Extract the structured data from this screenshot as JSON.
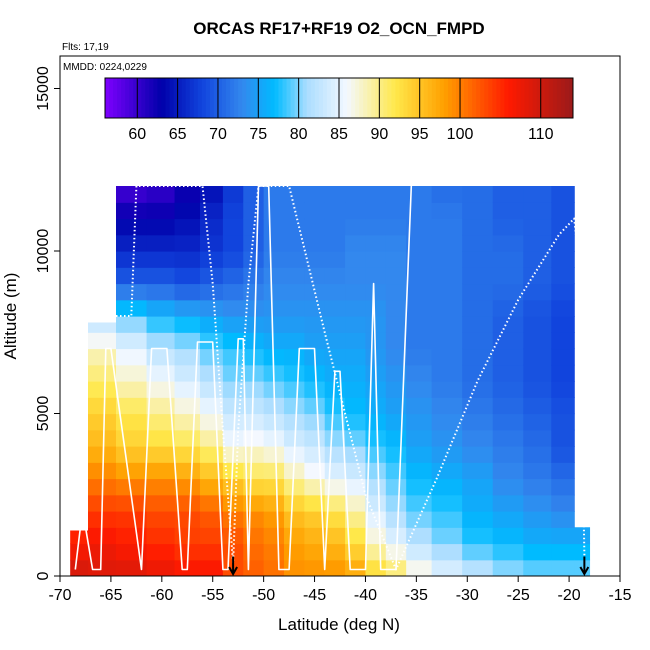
{
  "chart_data": {
    "type": "heatmap",
    "title": "ORCAS RF17+RF19 O2_OCN_FMPD",
    "annotations": [
      "Flts: 17,19",
      "MMDD: 0224,0229"
    ],
    "xlabel": "Latitude (deg N)",
    "ylabel": "Altitude (m)",
    "xlim": [
      -70,
      -15
    ],
    "ylim": [
      0,
      16000
    ],
    "x_ticks": [
      -70,
      -65,
      -60,
      -55,
      -50,
      -45,
      -40,
      -35,
      -30,
      -25,
      -20,
      -15
    ],
    "y_ticks": [
      0,
      5000,
      10000,
      15000
    ],
    "colorbar": {
      "range": [
        56,
        114
      ],
      "ticks": [
        60,
        65,
        70,
        75,
        80,
        85,
        90,
        95,
        100,
        110
      ],
      "colors": [
        "#7f00ff",
        "#0000aa",
        "#1144dd",
        "#3388ee",
        "#00bbff",
        "#aaddff",
        "#f4f8ff",
        "#ffe84a",
        "#ffa000",
        "#ff1a00",
        "#9b1a1a"
      ],
      "color_stops": [
        56,
        63,
        68,
        73,
        77,
        81,
        86,
        92,
        98,
        106,
        114
      ]
    },
    "field": {
      "lat": [
        -68.5,
        -66,
        -63,
        -60,
        -57.5,
        -55,
        -53,
        -51,
        -49,
        -47,
        -45,
        -43,
        -41,
        -39,
        -37,
        -35,
        -32,
        -29,
        -26,
        -23,
        -20.5,
        -18.5
      ],
      "alt": [
        0,
        500,
        1000,
        1500,
        2000,
        2500,
        3000,
        3500,
        4000,
        4500,
        5000,
        5500,
        6000,
        6500,
        7000,
        7500,
        8000,
        8500,
        9000,
        9500,
        10000,
        10500,
        11000,
        11500,
        12000
      ],
      "top_alt_by_lat": [
        1400,
        7800,
        12000,
        12000,
        12000,
        12000,
        12000,
        12000,
        12000,
        12000,
        12000,
        12000,
        12000,
        12000,
        12000,
        12000,
        12000,
        12000,
        12000,
        12000,
        12000,
        1500
      ],
      "knots": [
        {
          "alt": 0,
          "values": [
            110,
            109,
            109,
            108,
            107,
            107,
            103,
            102,
            101,
            99,
            99,
            99,
            98,
            94,
            92,
            88,
            85,
            83,
            81,
            80,
            80,
            80
          ]
        },
        {
          "alt": 1000,
          "values": [
            106,
            107,
            106,
            105,
            104,
            104,
            103,
            101,
            100,
            98,
            97,
            96,
            93,
            88,
            85,
            82,
            80,
            78,
            77,
            76,
            76,
            76
          ]
        },
        {
          "alt": 2000,
          "values": [
            104,
            104,
            104,
            103,
            103,
            102,
            100,
            99,
            98,
            95,
            94,
            92,
            89,
            84,
            81,
            79,
            78,
            76,
            75,
            74,
            73,
            73
          ]
        },
        {
          "alt": 3000,
          "values": [
            101,
            100,
            99,
            99,
            98,
            96,
            94,
            92,
            92,
            89,
            87,
            85,
            84,
            81,
            79,
            77,
            76,
            75,
            73,
            72,
            71,
            71
          ]
        },
        {
          "alt": 4000,
          "values": [
            98,
            96,
            94,
            93,
            92,
            90,
            86,
            87,
            86,
            84,
            83,
            81,
            80,
            78,
            77,
            75,
            74,
            73,
            72,
            71,
            69,
            69
          ]
        },
        {
          "alt": 5000,
          "values": [
            96,
            94,
            92,
            90,
            88,
            86,
            83,
            83,
            82,
            81,
            80,
            78,
            77,
            76,
            75,
            74,
            73,
            72,
            71,
            70,
            69,
            69
          ]
        },
        {
          "alt": 6000,
          "values": [
            94,
            91,
            88,
            86,
            84,
            82,
            80,
            80,
            79,
            78,
            77,
            76,
            76,
            75,
            74,
            73,
            72,
            71,
            70,
            69,
            68,
            68
          ]
        },
        {
          "alt": 7000,
          "values": [
            92,
            88,
            85,
            82,
            81,
            79,
            78,
            77,
            76,
            76,
            75,
            75,
            75,
            74,
            73,
            72,
            72,
            71,
            70,
            69,
            68,
            68
          ]
        },
        {
          "alt": 8000,
          "values": [
            86,
            81,
            79,
            77,
            76,
            75,
            74,
            74,
            74,
            74,
            74,
            74,
            74,
            74,
            73,
            72,
            72,
            71,
            70,
            69,
            68,
            68
          ]
        },
        {
          "alt": 9000,
          "values": [
            72,
            70,
            70,
            70,
            69,
            70,
            71,
            72,
            73,
            73,
            73,
            73,
            73,
            73,
            73,
            72,
            72,
            71,
            71,
            70,
            69,
            69
          ]
        },
        {
          "alt": 10000,
          "values": [
            67,
            66,
            66,
            66,
            66,
            67,
            68,
            70,
            72,
            72,
            72,
            72,
            73,
            73,
            73,
            72,
            72,
            71,
            71,
            70,
            69,
            69
          ]
        },
        {
          "alt": 11000,
          "values": [
            64,
            63,
            63,
            63,
            64,
            66,
            68,
            70,
            72,
            72,
            72,
            72,
            72,
            72,
            72,
            72,
            72,
            71,
            70,
            70,
            69,
            69
          ]
        },
        {
          "alt": 12000,
          "values": [
            58,
            58,
            59,
            60,
            62,
            64,
            67,
            70,
            72,
            72,
            72,
            72,
            72,
            72,
            72,
            72,
            71,
            71,
            70,
            70,
            69,
            69
          ]
        }
      ]
    },
    "flight_tracks": [
      {
        "name": "RF17",
        "style": "solid",
        "points": [
          [
            -68.5,
            200
          ],
          [
            -68,
            1500
          ],
          [
            -67.5,
            1500
          ],
          [
            -66.8,
            200
          ],
          [
            -66,
            200
          ],
          [
            -65.5,
            7000
          ],
          [
            -65,
            7000
          ],
          [
            -62,
            200
          ],
          [
            -61,
            7000
          ],
          [
            -60.5,
            7000
          ],
          [
            -59.5,
            7000
          ],
          [
            -58,
            200
          ],
          [
            -57.5,
            200
          ],
          [
            -56.5,
            7200
          ],
          [
            -56,
            7200
          ],
          [
            -55,
            7200
          ],
          [
            -54,
            200
          ],
          [
            -53.5,
            200
          ],
          [
            -52.5,
            7300
          ],
          [
            -52,
            7300
          ],
          [
            -51.5,
            200
          ],
          [
            -50.5,
            12000
          ],
          [
            -50,
            12000
          ],
          [
            -49.5,
            12000
          ],
          [
            -48.5,
            200
          ],
          [
            -47.5,
            200
          ],
          [
            -46.5,
            7000
          ],
          [
            -45,
            7000
          ],
          [
            -44,
            200
          ],
          [
            -43,
            6300
          ],
          [
            -42.5,
            6300
          ],
          [
            -41.5,
            200
          ],
          [
            -40,
            200
          ],
          [
            -39.2,
            9000
          ],
          [
            -38.5,
            200
          ],
          [
            -37,
            200
          ],
          [
            -35.5,
            12000
          ]
        ]
      },
      {
        "name": "RF19",
        "style": "dotted",
        "points": [
          [
            -64.5,
            8000
          ],
          [
            -63,
            8000
          ],
          [
            -62.5,
            12000
          ],
          [
            -56,
            12000
          ],
          [
            -55,
            9000
          ],
          [
            -54,
            4500
          ],
          [
            -53,
            400
          ],
          [
            -52.5,
            4500
          ],
          [
            -51.5,
            9000
          ],
          [
            -50.5,
            12000
          ],
          [
            -47.5,
            12000
          ],
          [
            -44,
            7500
          ],
          [
            -40,
            2500
          ],
          [
            -37,
            200
          ],
          [
            -33,
            3000
          ],
          [
            -29,
            6000
          ],
          [
            -25,
            8500
          ],
          [
            -21,
            10500
          ],
          [
            -19.5,
            11000
          ],
          [
            -19,
            9500
          ],
          [
            -18.5,
            600
          ]
        ]
      }
    ],
    "arrows": [
      {
        "lat": -53,
        "alt_top": 600,
        "alt_bottom": 0
      },
      {
        "lat": -18.5,
        "alt_top": 600,
        "alt_bottom": 0
      }
    ]
  }
}
